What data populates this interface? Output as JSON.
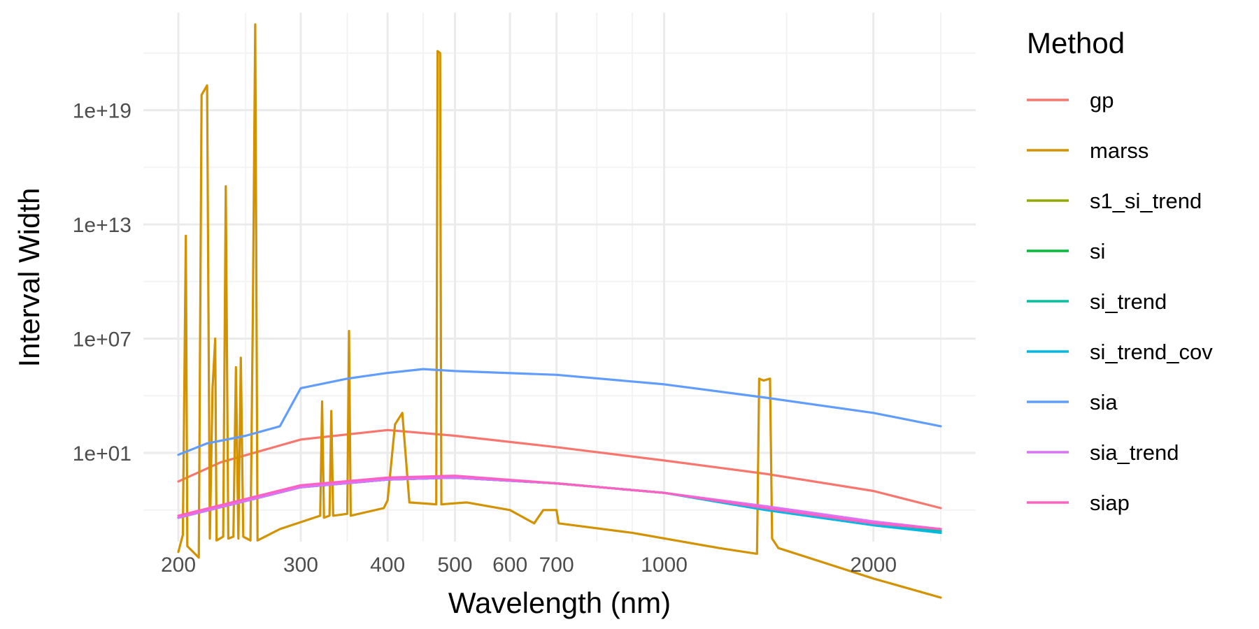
{
  "chart_data": {
    "type": "line",
    "xlabel": "Wavelength (nm)",
    "ylabel": "Interval Width",
    "x_scale": "log",
    "y_scale": "log",
    "xlim": [
      200,
      2500
    ],
    "ylim_exp": [
      -3,
      23.5
    ],
    "x_ticks": [
      {
        "value": 200,
        "label": "200"
      },
      {
        "value": 300,
        "label": "300"
      },
      {
        "value": 400,
        "label": "400"
      },
      {
        "value": 500,
        "label": "500"
      },
      {
        "value": 600,
        "label": "600"
      },
      {
        "value": 700,
        "label": "700"
      },
      {
        "value": 1000,
        "label": "1000"
      },
      {
        "value": 2000,
        "label": "2000"
      }
    ],
    "x_minor": [
      250,
      350,
      450,
      800,
      900,
      1500,
      2500
    ],
    "y_ticks": [
      {
        "exp": 1,
        "label": "1e+01"
      },
      {
        "exp": 7,
        "label": "1e+07"
      },
      {
        "exp": 13,
        "label": "1e+13"
      },
      {
        "exp": 19,
        "label": "1e+19"
      }
    ],
    "y_minor_exp": [
      -2,
      4,
      10,
      16,
      22
    ],
    "grid": true,
    "legend": {
      "title": "Method",
      "position": "right"
    },
    "series": [
      {
        "name": "gp",
        "color": "#F8766D",
        "points": [
          [
            200,
            -0.5
          ],
          [
            230,
            0.5
          ],
          [
            300,
            1.7
          ],
          [
            400,
            2.2
          ],
          [
            500,
            1.9
          ],
          [
            700,
            1.3
          ],
          [
            1000,
            0.6
          ],
          [
            1400,
            -0.1
          ],
          [
            2000,
            -1.0
          ],
          [
            2500,
            -1.9
          ]
        ]
      },
      {
        "name": "marss",
        "color": "#D39200",
        "points": [
          [
            200,
            -4.2
          ],
          [
            203,
            -3.3
          ],
          [
            205,
            12.4
          ],
          [
            206,
            -3.9
          ],
          [
            214,
            -4.5
          ],
          [
            216,
            19.8
          ],
          [
            220,
            20.3
          ],
          [
            222,
            -3.5
          ],
          [
            224,
            4.4
          ],
          [
            226,
            7.0
          ],
          [
            227,
            -3.6
          ],
          [
            232,
            -3.4
          ],
          [
            234,
            15.0
          ],
          [
            236,
            -3.5
          ],
          [
            240,
            -3.4
          ],
          [
            242,
            5.5
          ],
          [
            244,
            -3.5
          ],
          [
            246,
            6.0
          ],
          [
            248,
            -3.4
          ],
          [
            254,
            -3.6
          ],
          [
            256,
            8.3
          ],
          [
            258,
            23.5
          ],
          [
            260,
            -3.6
          ],
          [
            280,
            -3.0
          ],
          [
            320,
            -2.3
          ],
          [
            322,
            3.7
          ],
          [
            324,
            -2.4
          ],
          [
            330,
            -2.3
          ],
          [
            332,
            3.2
          ],
          [
            334,
            -2.3
          ],
          [
            350,
            -2.2
          ],
          [
            352,
            7.4
          ],
          [
            354,
            -2.3
          ],
          [
            395,
            -1.9
          ],
          [
            400,
            -1.5
          ],
          [
            410,
            2.5
          ],
          [
            420,
            3.1
          ],
          [
            430,
            -1.6
          ],
          [
            470,
            -1.7
          ],
          [
            472,
            22.1
          ],
          [
            476,
            22.0
          ],
          [
            478,
            -1.7
          ],
          [
            520,
            -1.6
          ],
          [
            600,
            -2.0
          ],
          [
            650,
            -2.7
          ],
          [
            670,
            -2.0
          ],
          [
            700,
            -2.0
          ],
          [
            705,
            -2.7
          ],
          [
            900,
            -3.2
          ],
          [
            1200,
            -4.0
          ],
          [
            1360,
            -4.3
          ],
          [
            1370,
            4.9
          ],
          [
            1390,
            4.8
          ],
          [
            1420,
            4.9
          ],
          [
            1430,
            -3.5
          ],
          [
            1460,
            -4.0
          ],
          [
            2000,
            -5.6
          ],
          [
            2500,
            -6.6
          ]
        ]
      },
      {
        "name": "s1_si_trend",
        "color": "#93AA00",
        "points": [
          [
            200,
            -2.4
          ],
          [
            300,
            -0.8
          ],
          [
            400,
            -0.4
          ],
          [
            500,
            -0.3
          ],
          [
            700,
            -0.6
          ],
          [
            1000,
            -1.1
          ],
          [
            1400,
            -1.9
          ],
          [
            2000,
            -2.7
          ],
          [
            2500,
            -3.1
          ]
        ]
      },
      {
        "name": "si",
        "color": "#00BA38",
        "points": [
          [
            200,
            -2.4
          ],
          [
            300,
            -0.8
          ],
          [
            400,
            -0.4
          ],
          [
            500,
            -0.3
          ],
          [
            700,
            -0.6
          ],
          [
            1000,
            -1.1
          ],
          [
            1400,
            -1.9
          ],
          [
            2000,
            -2.7
          ],
          [
            2500,
            -3.1
          ]
        ]
      },
      {
        "name": "si_trend",
        "color": "#00C19F",
        "points": [
          [
            200,
            -2.4
          ],
          [
            300,
            -0.8
          ],
          [
            400,
            -0.4
          ],
          [
            500,
            -0.3
          ],
          [
            700,
            -0.6
          ],
          [
            1000,
            -1.1
          ],
          [
            1400,
            -1.9
          ],
          [
            2000,
            -2.7
          ],
          [
            2500,
            -3.1
          ]
        ]
      },
      {
        "name": "si_trend_cov",
        "color": "#00B9E3",
        "points": [
          [
            200,
            -2.4
          ],
          [
            300,
            -0.8
          ],
          [
            400,
            -0.4
          ],
          [
            500,
            -0.3
          ],
          [
            700,
            -0.6
          ],
          [
            1000,
            -1.1
          ],
          [
            1400,
            -2.0
          ],
          [
            2000,
            -2.8
          ],
          [
            2500,
            -3.2
          ]
        ]
      },
      {
        "name": "sia",
        "color": "#619CFF",
        "points": [
          [
            200,
            0.9
          ],
          [
            220,
            1.5
          ],
          [
            250,
            1.9
          ],
          [
            280,
            2.4
          ],
          [
            300,
            4.4
          ],
          [
            350,
            4.9
          ],
          [
            400,
            5.2
          ],
          [
            450,
            5.4
          ],
          [
            500,
            5.3
          ],
          [
            700,
            5.1
          ],
          [
            1000,
            4.6
          ],
          [
            1400,
            3.9
          ],
          [
            2000,
            3.1
          ],
          [
            2500,
            2.4
          ]
        ]
      },
      {
        "name": "sia_trend",
        "color": "#DB72FB",
        "points": [
          [
            200,
            -2.4
          ],
          [
            300,
            -0.8
          ],
          [
            400,
            -0.4
          ],
          [
            500,
            -0.3
          ],
          [
            700,
            -0.6
          ],
          [
            1000,
            -1.1
          ],
          [
            1400,
            -1.8
          ],
          [
            2000,
            -2.6
          ],
          [
            2500,
            -3.0
          ]
        ]
      },
      {
        "name": "siap",
        "color": "#FF61C3",
        "points": [
          [
            200,
            -2.3
          ],
          [
            300,
            -0.7
          ],
          [
            400,
            -0.3
          ],
          [
            500,
            -0.2
          ],
          [
            700,
            -0.6
          ],
          [
            1000,
            -1.1
          ],
          [
            1400,
            -1.9
          ],
          [
            2000,
            -2.7
          ],
          [
            2500,
            -3.0
          ]
        ]
      }
    ]
  }
}
